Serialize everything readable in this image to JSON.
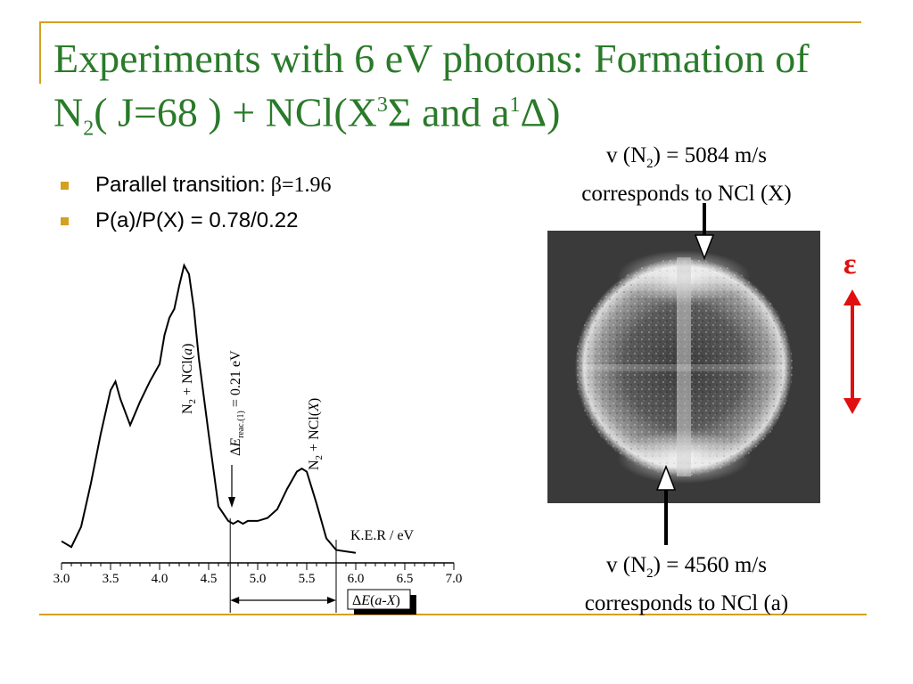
{
  "slide": {
    "title_line1": "Experiments with 6 eV photons: Formation of",
    "title_l2_a": "N",
    "title_l2_sub": "2",
    "title_l2_b": "( J=68 ) + NCl(X",
    "title_l2_sup1": "3",
    "title_l2_c": "Σ and a",
    "title_l2_sup2": "1",
    "title_l2_d": "Δ)"
  },
  "bullets": [
    {
      "label": "Parallel transition:",
      "value": "β=1.96"
    },
    {
      "label": "P(a)/P(X) = 0.78/0.22"
    }
  ],
  "chart_data": {
    "type": "line",
    "xlabel": "K.E.R / eV",
    "xlim": [
      3.0,
      7.0
    ],
    "x_ticks": [
      "3.0",
      "3.5",
      "4.0",
      "4.5",
      "5.0",
      "5.5",
      "6.0",
      "6.5",
      "7.0"
    ],
    "ylabel": "",
    "series": [
      {
        "x": [
          3.0,
          3.1,
          3.2,
          3.3,
          3.4,
          3.5,
          3.55,
          3.6,
          3.7,
          3.8,
          3.9,
          4.0,
          4.05,
          4.1,
          4.15,
          4.2,
          4.25,
          4.3,
          4.35,
          4.4,
          4.5,
          4.6,
          4.7,
          4.75,
          4.8,
          4.85,
          4.9,
          5.0,
          5.1,
          5.2,
          5.3,
          5.4,
          5.45,
          5.5,
          5.6,
          5.7,
          5.8,
          6.0
        ],
        "y": [
          0.05,
          0.03,
          0.1,
          0.25,
          0.42,
          0.57,
          0.6,
          0.54,
          0.45,
          0.53,
          0.6,
          0.66,
          0.76,
          0.82,
          0.85,
          0.93,
          1.0,
          0.97,
          0.85,
          0.68,
          0.42,
          0.17,
          0.12,
          0.11,
          0.12,
          0.11,
          0.12,
          0.12,
          0.13,
          0.16,
          0.23,
          0.29,
          0.3,
          0.29,
          0.18,
          0.06,
          0.02,
          0.01
        ]
      }
    ],
    "annotations": {
      "peak_a": {
        "base": "N",
        "sub": "2",
        "rest": " + NCl(",
        "ital": "a",
        "end": ")"
      },
      "peak_x": {
        "base": "N",
        "sub": "2",
        "rest": " + NCl(",
        "ital": "X",
        "end": ")"
      },
      "delta_reac": {
        "delta": "Δ",
        "E": "E",
        "sub": "reac.(1)",
        "rest": " = 0.21 eV"
      },
      "delta_ax": {
        "delta": "Δ",
        "E": "E",
        "paren": "(",
        "ital": "a-X",
        "end": ")"
      }
    },
    "markers": {
      "reac_x": 4.72,
      "ax_x": 5.8
    }
  },
  "image": {
    "caption_top_a": "v (N",
    "caption_top_sub": "2",
    "caption_top_b": ") = 5084 m/s",
    "caption_top_line2": "corresponds to NCl (X)",
    "caption_bot_a": "v (N",
    "caption_bot_sub": "2",
    "caption_bot_b": ") = 4560 m/s",
    "caption_bot_line2": "corresponds to NCl (a)",
    "polarization_symbol": "ε",
    "polarization_color": "#e01010"
  }
}
